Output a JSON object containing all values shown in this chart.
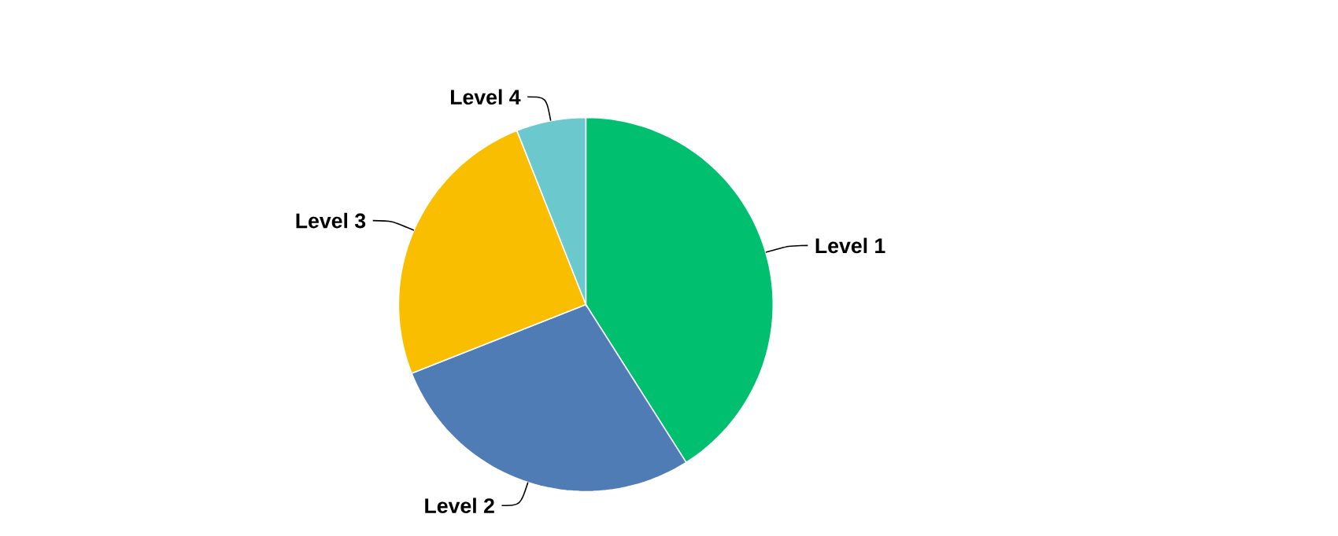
{
  "chart_data": {
    "type": "pie",
    "categories": [
      "Level 1",
      "Level 2",
      "Level 3",
      "Level 4"
    ],
    "values": [
      41,
      28,
      25,
      6
    ],
    "colors": [
      "#00bf6f",
      "#507cb6",
      "#f9be00",
      "#6bc8cd"
    ]
  }
}
